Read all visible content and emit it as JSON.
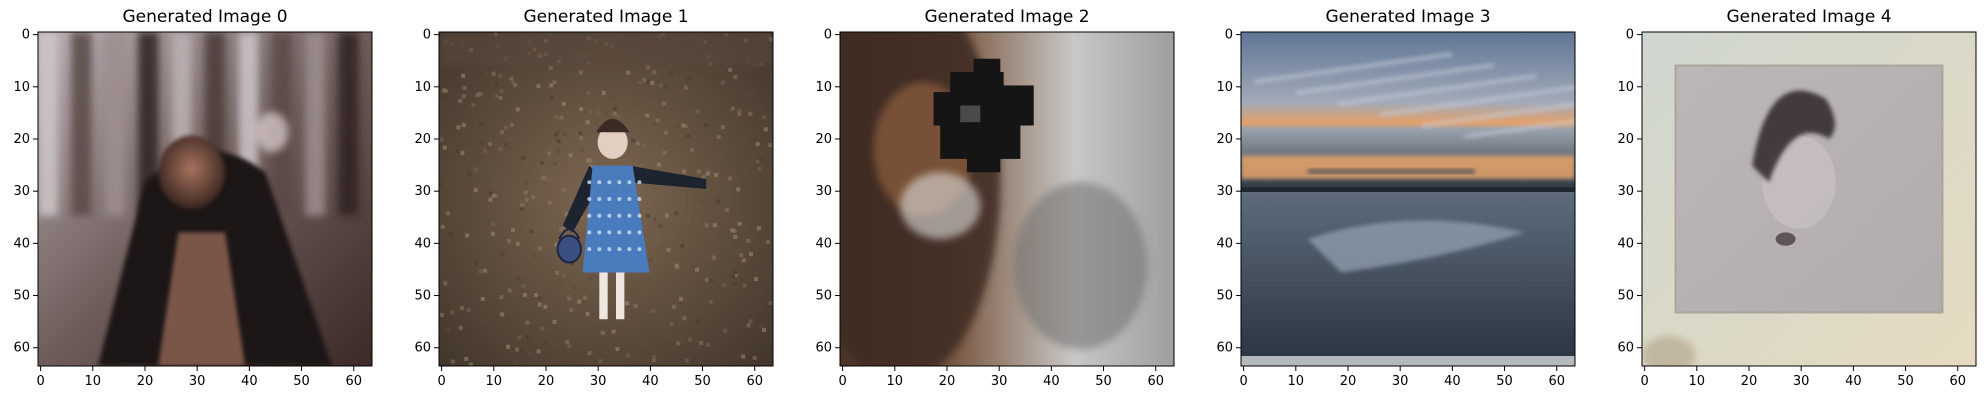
{
  "figure": {
    "panels": [
      {
        "title": "Generated Image 0",
        "palette": {
          "bg": "#8a7c78",
          "accent1": "#3d2a26",
          "accent2": "#9a6a55",
          "accent3": "#c9c2c4"
        },
        "xticks": [
          "0",
          "10",
          "20",
          "30",
          "40",
          "50",
          "60"
        ],
        "yticks": [
          "0",
          "10",
          "20",
          "30",
          "40",
          "50",
          "60"
        ]
      },
      {
        "title": "Generated Image 1",
        "palette": {
          "bg": "#6f5a45",
          "accent1": "#3f6ea8",
          "accent2": "#e7d7cc",
          "accent3": "#2b2421"
        },
        "xticks": [
          "0",
          "10",
          "20",
          "30",
          "40",
          "50",
          "60"
        ],
        "yticks": [
          "0",
          "10",
          "20",
          "30",
          "40",
          "50",
          "60"
        ]
      },
      {
        "title": "Generated Image 2",
        "palette": {
          "bg": "#b9b9b8",
          "accent1": "#1b1b1b",
          "accent2": "#8b5a3b",
          "accent3": "#d6d5d2"
        },
        "xticks": [
          "0",
          "10",
          "20",
          "30",
          "40",
          "50",
          "60"
        ],
        "yticks": [
          "0",
          "10",
          "20",
          "30",
          "40",
          "50",
          "60"
        ]
      },
      {
        "title": "Generated Image 3",
        "palette": {
          "bg": "#5a6a7f",
          "accent1": "#e7a66b",
          "accent2": "#2f3a46",
          "accent3": "#a9b7c4"
        },
        "xticks": [
          "0",
          "10",
          "20",
          "30",
          "40",
          "50",
          "60"
        ],
        "yticks": [
          "0",
          "10",
          "20",
          "30",
          "40",
          "50",
          "60"
        ]
      },
      {
        "title": "Generated Image 4",
        "palette": {
          "bg": "#d9d2b9",
          "accent1": "#3a2f2f",
          "accent2": "#bdb3a8",
          "accent3": "#a6a0b5"
        },
        "xticks": [
          "0",
          "10",
          "20",
          "30",
          "40",
          "50",
          "60"
        ],
        "yticks": [
          "0",
          "10",
          "20",
          "30",
          "40",
          "50",
          "60"
        ]
      }
    ]
  }
}
